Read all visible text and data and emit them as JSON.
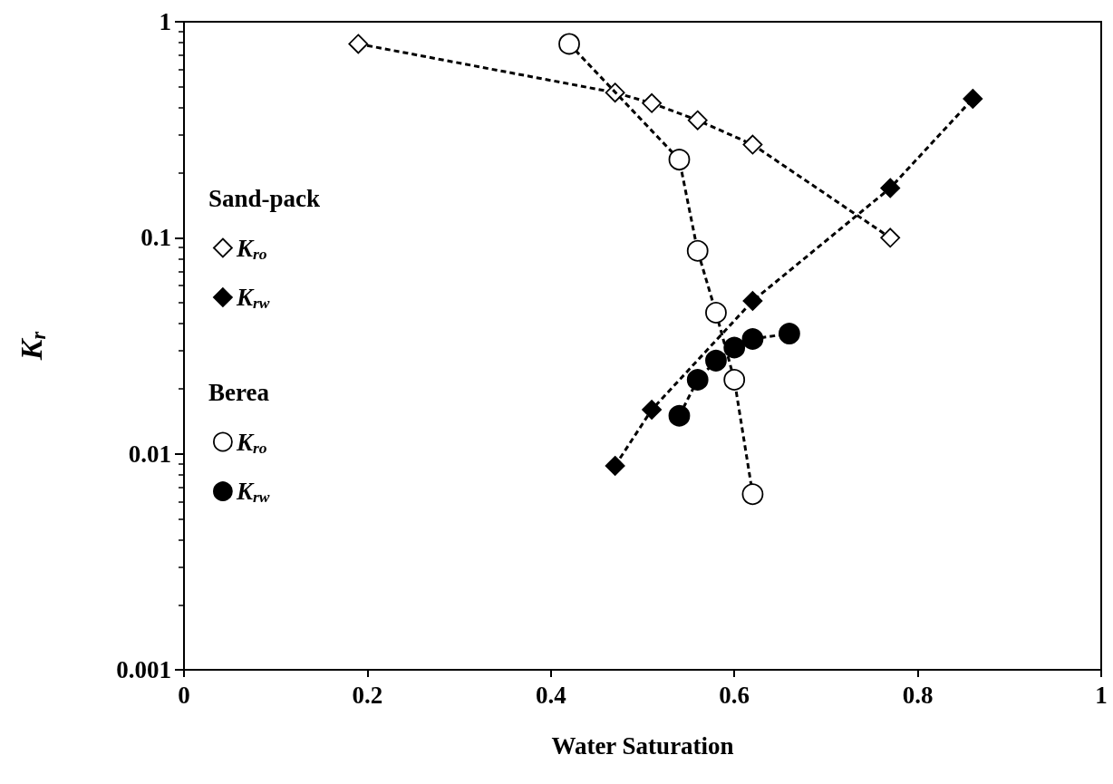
{
  "chart_data": {
    "type": "line",
    "xlabel": "Water Saturation",
    "ylabel": "K$_{r}$",
    "xlim": [
      0,
      1
    ],
    "xticks": [
      0,
      0.2,
      0.4,
      0.6,
      0.8,
      1
    ],
    "ylim": [
      0.001,
      1
    ],
    "yticks": [
      0.001,
      0.01,
      0.1,
      1
    ],
    "log": "y",
    "legend": "left",
    "line_style": "dashed",
    "grid": false,
    "annotations": [
      "Sand-pack",
      "Berea"
    ],
    "series": [
      {
        "name": "K$_{ro}$",
        "color": "#000000",
        "marker": "diamond",
        "colors": [
          "#ffffff",
          "#ffffff",
          "#ffffff",
          "#ffffff",
          "#ffffff",
          "#ffffff"
        ],
        "x": [
          0.19,
          0.47,
          0.51,
          0.56,
          0.62,
          0.77
        ],
        "values": [
          0.79,
          0.47,
          0.42,
          0.35,
          0.27,
          0.1
        ]
      },
      {
        "name": "K$_{rw}$",
        "color": "#000000",
        "marker": "diamond",
        "x": [
          0.47,
          0.51,
          0.62,
          0.77,
          0.86
        ],
        "values": [
          0.0088,
          0.016,
          0.051,
          0.17,
          0.44
        ]
      },
      {
        "name": "K$_{ro}$",
        "color": "#000000",
        "marker": "circle",
        "colors": [
          "#ffffff",
          "#ffffff",
          "#ffffff",
          "#ffffff",
          "#ffffff",
          "#ffffff"
        ],
        "x": [
          0.42,
          0.54,
          0.56,
          0.58,
          0.6,
          0.62
        ],
        "values": [
          0.79,
          0.23,
          0.087,
          0.045,
          0.022,
          0.0065
        ]
      },
      {
        "name": "K$_{rw}$",
        "color": "#000000",
        "marker": "circle",
        "x": [
          0.54,
          0.56,
          0.58,
          0.6,
          0.62,
          0.66
        ],
        "values": [
          0.015,
          0.022,
          0.027,
          0.031,
          0.034,
          0.036
        ]
      }
    ]
  }
}
